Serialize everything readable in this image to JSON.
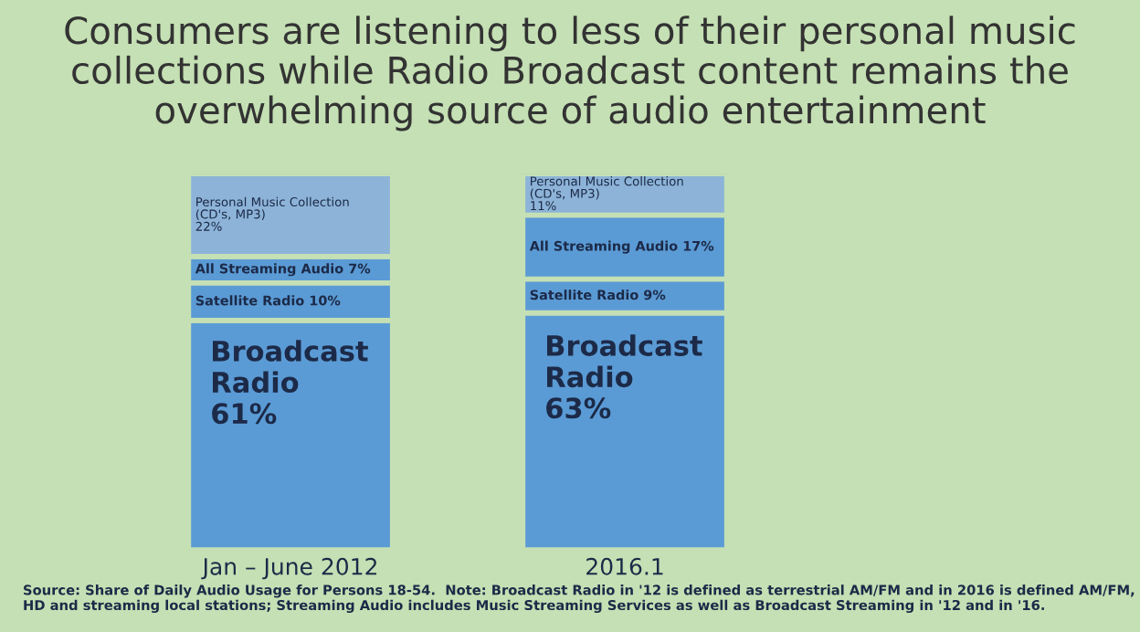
{
  "chart_data": {
    "type": "bar",
    "stacked": true,
    "title": "Consumers are listening to less of their personal music collections while Radio Broadcast content remains the overwhelming source of audio entertainment",
    "categories": [
      "Jan – June 2012",
      "2016.1"
    ],
    "series": [
      {
        "name": "Broadcast\nRadio",
        "color": "#5b9bd5",
        "values": [
          61,
          63
        ],
        "value_labels": [
          "61%",
          "63%"
        ]
      },
      {
        "name": "Satellite Radio",
        "color": "#5b9bd5",
        "values": [
          10,
          9
        ],
        "value_labels": [
          "10%",
          "9%"
        ]
      },
      {
        "name": "All Streaming Audio",
        "color": "#5b9bd5",
        "values": [
          7,
          17
        ],
        "value_labels": [
          "7%",
          "17%"
        ]
      },
      {
        "name": "Personal Music Collection\n(CD's, MP3)",
        "color": "#8db4d8",
        "values": [
          22,
          11
        ],
        "value_labels": [
          "22%",
          "11%"
        ]
      }
    ],
    "legend": false,
    "annotations": [
      "Source: Share of Daily Audio Usage for Persons 18-54.  Note: Broadcast Radio in '12 is defined as terrestrial AM/FM and in 2016 is defined AM/FM, HD and streaming local stations; Streaming Audio includes Music Streaming Services as well as Broadcast Streaming in '12 and in '16."
    ]
  }
}
